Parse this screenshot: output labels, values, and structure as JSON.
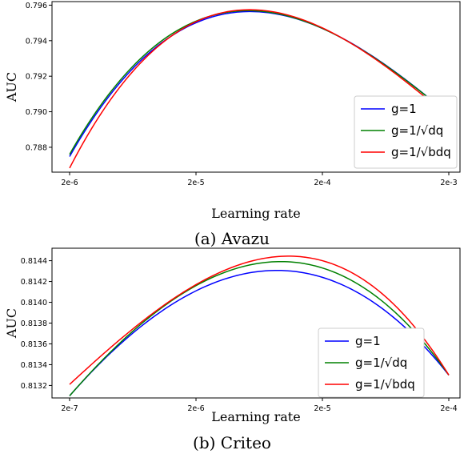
{
  "chart_data": [
    {
      "type": "line",
      "caption": "(a)  Avazu",
      "xlabel": "Learning rate",
      "ylabel": "AUC",
      "x_scale": "log",
      "x": [
        2e-06,
        2e-05,
        0.0002,
        0.002
      ],
      "x_tick_labels": [
        "2e-6",
        "2e-5",
        "2e-4",
        "2e-3"
      ],
      "y_ticks": [
        0.788,
        0.79,
        0.792,
        0.794,
        0.796
      ],
      "y_tick_labels": [
        "0.788",
        "0.790",
        "0.792",
        "0.794",
        "0.796"
      ],
      "ylim": [
        0.7866,
        0.7962
      ],
      "legend_position": "lower right",
      "series": [
        {
          "name": "g=1",
          "color": "#0000ff",
          "values": [
            0.78748,
            0.79501,
            0.79469,
            0.78985
          ]
        },
        {
          "name": "g=1/√dq",
          "color": "#008000",
          "values": [
            0.7876,
            0.7951,
            0.79469,
            0.78985
          ]
        },
        {
          "name": "g=1/√bdq",
          "color": "#ff0000",
          "values": [
            0.78683,
            0.79507,
            0.79472,
            0.78971
          ]
        }
      ]
    },
    {
      "type": "line",
      "caption": "(b)  Criteo",
      "xlabel": "Learning rate",
      "ylabel": "AUC",
      "x_scale": "log",
      "x": [
        2e-07,
        2e-06,
        2e-05,
        0.0002
      ],
      "x_tick_labels": [
        "2e-7",
        "2e-6",
        "2e-5",
        "2e-4"
      ],
      "y_ticks": [
        0.8132,
        0.8134,
        0.8136,
        0.8138,
        0.814,
        0.8142,
        0.8144
      ],
      "y_tick_labels": [
        "0.8132",
        "0.8134",
        "0.8136",
        "0.8138",
        "0.8140",
        "0.8142",
        "0.8144"
      ],
      "ylim": [
        0.81308,
        0.81452
      ],
      "legend_position": "right",
      "series": [
        {
          "name": "g=1",
          "color": "#0000ff",
          "values": [
            0.8131,
            0.81411,
            0.81424,
            0.8133
          ]
        },
        {
          "name": "g=1/√dq",
          "color": "#008000",
          "values": [
            0.8131,
            0.81416,
            0.81433,
            0.8133
          ]
        },
        {
          "name": "g=1/√bdq",
          "color": "#ff0000",
          "values": [
            0.81321,
            0.81417,
            0.8144,
            0.8133
          ]
        }
      ]
    }
  ]
}
